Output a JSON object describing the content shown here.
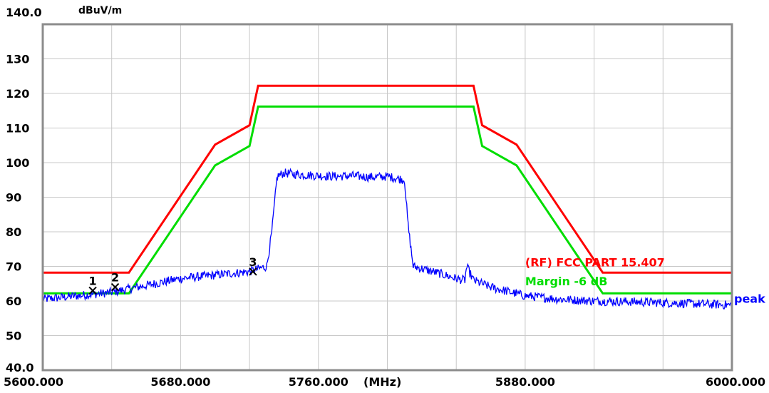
{
  "chart_data": {
    "type": "line",
    "y_unit_label": "dBuV/m",
    "x_unit_label": "(MHz)",
    "xlim": [
      5600.0,
      6000.0
    ],
    "ylim": [
      40.0,
      140.0
    ],
    "x_ticks": [
      {
        "value": 5600,
        "label": "5600.000"
      },
      {
        "value": 5680,
        "label": "5680.000"
      },
      {
        "value": 5760,
        "label": "5760.000"
      },
      {
        "value": 5880,
        "label": "5880.000"
      },
      {
        "value": 6000,
        "label": "6000.000"
      }
    ],
    "y_ticks": [
      {
        "value": 140,
        "label": "140.0"
      },
      {
        "value": 130,
        "label": "130"
      },
      {
        "value": 120,
        "label": "120"
      },
      {
        "value": 110,
        "label": "110"
      },
      {
        "value": 100,
        "label": "100"
      },
      {
        "value": 90,
        "label": "90"
      },
      {
        "value": 80,
        "label": "80"
      },
      {
        "value": 70,
        "label": "70"
      },
      {
        "value": 60,
        "label": "60"
      },
      {
        "value": 50,
        "label": "50"
      },
      {
        "value": 40,
        "label": "40.0"
      }
    ],
    "grid": true,
    "series": [
      {
        "name": "(RF) FCC PART 15.407",
        "color": "#ff0000",
        "x": [
          5600,
          5650,
          5700,
          5720,
          5725,
          5850,
          5855,
          5875,
          5925,
          6000
        ],
        "y": [
          68.2,
          68.2,
          105.2,
          110.8,
          122.2,
          122.2,
          110.8,
          105.2,
          68.2,
          68.2
        ]
      },
      {
        "name": "Margin -6 dB",
        "color": "#00dd00",
        "x": [
          5600,
          5650,
          5700,
          5720,
          5725,
          5850,
          5855,
          5875,
          5925,
          6000
        ],
        "y": [
          62.2,
          62.2,
          99.2,
          104.8,
          116.2,
          116.2,
          104.8,
          99.2,
          62.2,
          62.2
        ]
      },
      {
        "name": "peak",
        "color": "#0000ff",
        "x": [
          5600,
          5620,
          5640,
          5660,
          5680,
          5700,
          5720,
          5730,
          5733,
          5736,
          5740,
          5750,
          5760,
          5770,
          5780,
          5790,
          5800,
          5810,
          5812,
          5815,
          5830,
          5840,
          5845,
          5846,
          5850,
          5860,
          5880,
          5900,
          5920,
          5940,
          5960,
          5980,
          6000
        ],
        "y": [
          60.5,
          61.5,
          62.5,
          64.5,
          66.5,
          67.5,
          68.5,
          70.0,
          80.0,
          96.0,
          97.0,
          96.5,
          96.2,
          96.0,
          96.2,
          95.8,
          96.0,
          95.0,
          82.0,
          70.0,
          68.0,
          66.5,
          66.0,
          70.0,
          66.0,
          64.0,
          61.5,
          60.5,
          60.0,
          59.8,
          59.5,
          59.2,
          58.8
        ]
      }
    ],
    "markers": [
      {
        "label": "1",
        "x": 5629,
        "y": 63.0
      },
      {
        "label": "2",
        "x": 5642,
        "y": 64.0
      },
      {
        "label": "3",
        "x": 5722,
        "y": 68.5
      }
    ],
    "legend_entries": [
      {
        "text": "(RF) FCC PART 15.407",
        "color": "#ff0000",
        "x": 5880,
        "y": 70.0
      },
      {
        "text": "Margin -6 dB",
        "color": "#00dd00",
        "x": 5880,
        "y": 64.5
      },
      {
        "text": "peak",
        "color": "#0000ff",
        "x": 6000,
        "y": 59.5
      }
    ]
  }
}
